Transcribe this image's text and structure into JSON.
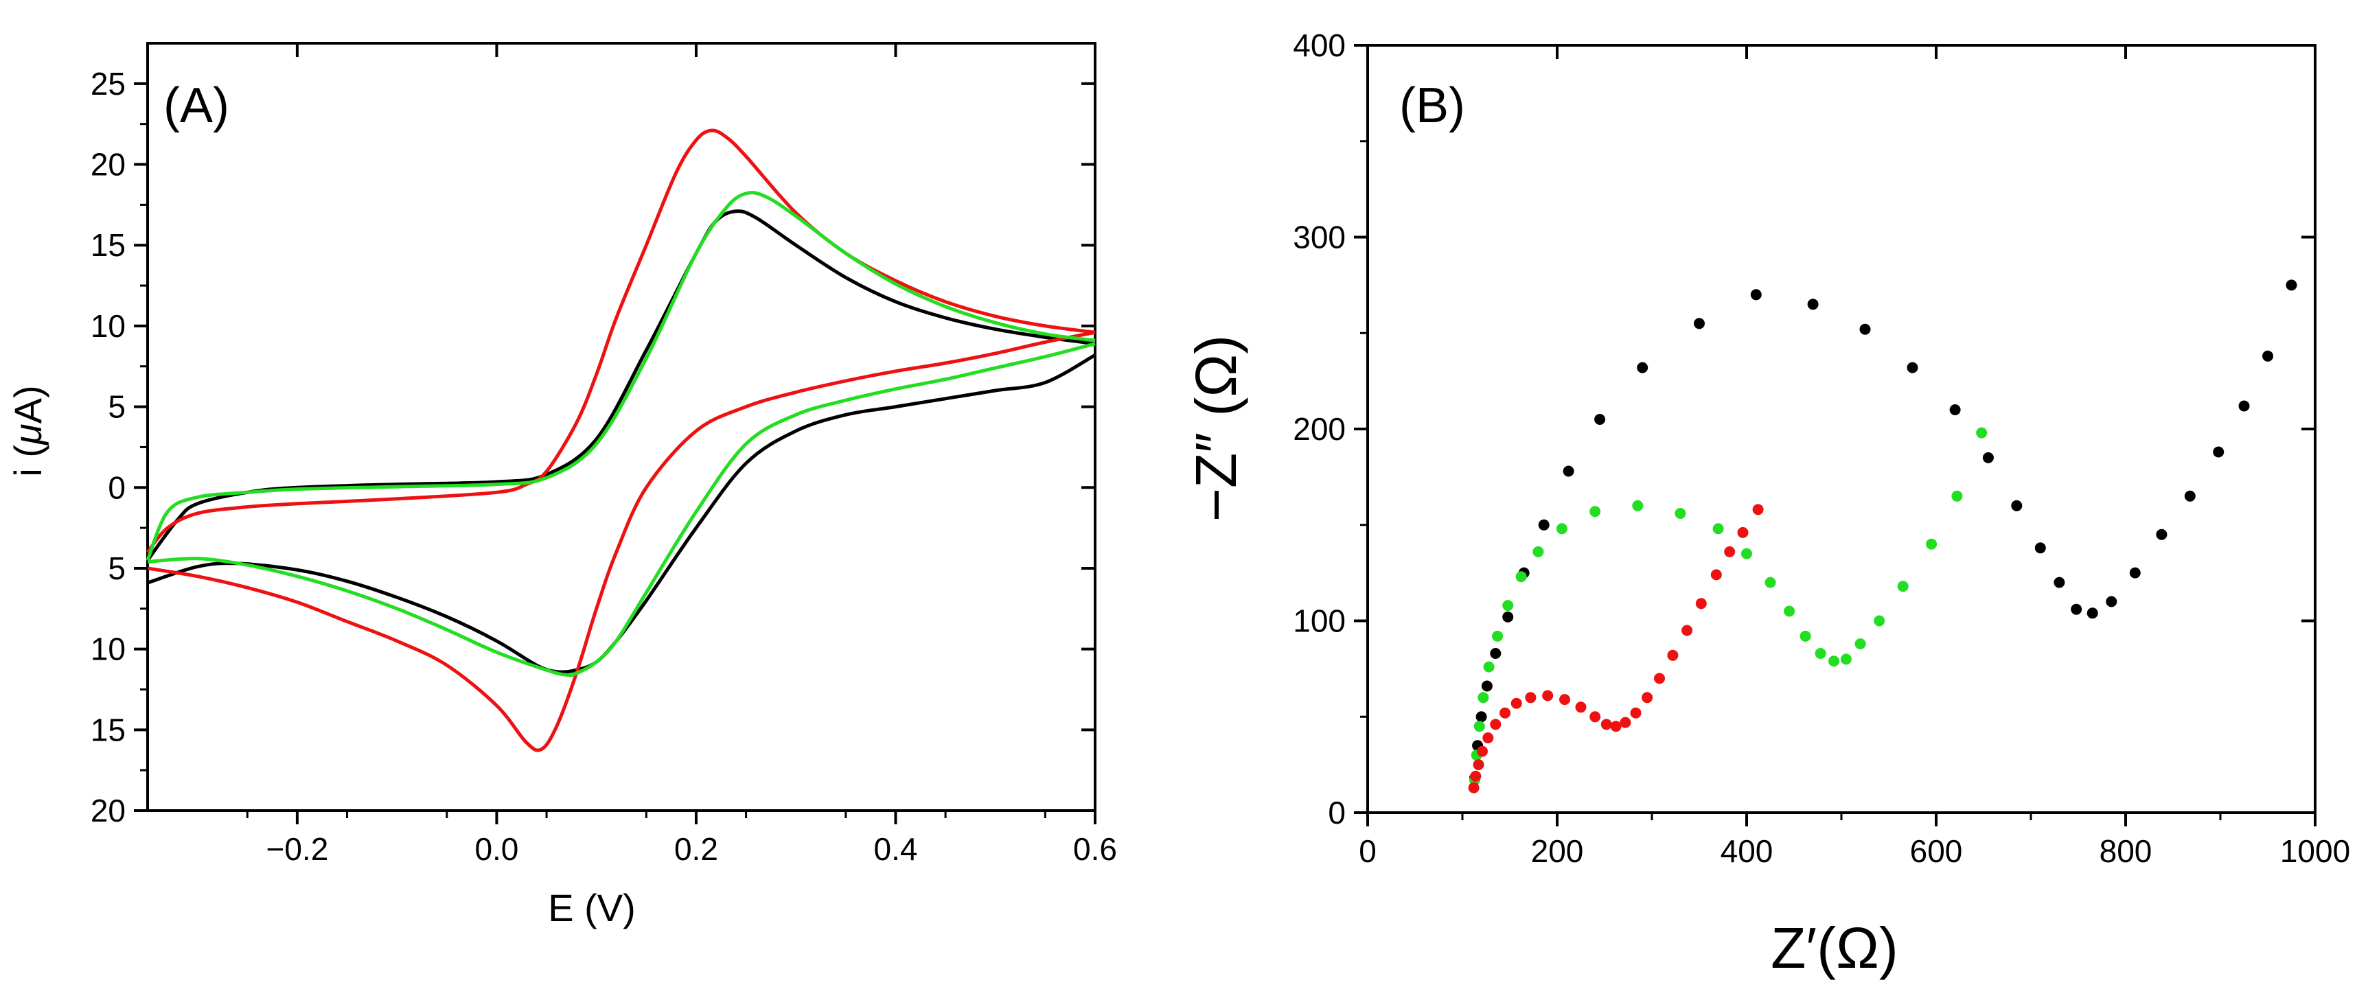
{
  "chart_data": [
    {
      "type": "line",
      "panel_label": "(A)",
      "xlabel": "E (V)",
      "ylabel": "i (μA)",
      "ylabel_prefix": "i (",
      "ylabel_unit_symbol": "μ",
      "ylabel_suffix": "A)",
      "xlim": [
        -0.35,
        0.6
      ],
      "ylim": [
        -20,
        27.5
      ],
      "x_ticks": [
        -0.2,
        0.0,
        0.2,
        0.4,
        0.6
      ],
      "x_tick_labels": [
        "−0.2",
        "0.0",
        "0.2",
        "0.4",
        "0.6"
      ],
      "y_ticks": [
        -20,
        -15,
        -10,
        -5,
        0,
        5,
        10,
        15,
        20,
        25
      ],
      "y_tick_labels": [
        "20",
        "15",
        "10",
        "5",
        "0",
        "5",
        "10",
        "15",
        "20",
        "25"
      ],
      "grid": false,
      "series": [
        {
          "name": "black",
          "color": "#000000",
          "forward": {
            "x": [
              -0.35,
              -0.32,
              -0.3,
              -0.25,
              -0.2,
              -0.1,
              0.0,
              0.05,
              0.1,
              0.15,
              0.2,
              0.22,
              0.24,
              0.26,
              0.3,
              0.35,
              0.4,
              0.45,
              0.5,
              0.55,
              0.6
            ],
            "y": [
              -4.5,
              -2.0,
              -1.0,
              -0.3,
              0.0,
              0.2,
              0.35,
              0.8,
              3.0,
              8.5,
              14.5,
              16.5,
              17.1,
              16.7,
              15.0,
              13.0,
              11.5,
              10.5,
              9.8,
              9.3,
              8.9
            ]
          },
          "reverse": {
            "x": [
              0.6,
              0.55,
              0.5,
              0.45,
              0.4,
              0.35,
              0.3,
              0.25,
              0.2,
              0.15,
              0.12,
              0.1,
              0.08,
              0.06,
              0.04,
              0.0,
              -0.05,
              -0.1,
              -0.15,
              -0.2,
              -0.26,
              -0.3,
              -0.35
            ],
            "y": [
              8.2,
              6.5,
              6.0,
              5.5,
              5.0,
              4.5,
              3.5,
              1.5,
              -2.5,
              -7.0,
              -9.5,
              -10.8,
              -11.3,
              -11.4,
              -11.0,
              -9.5,
              -8.0,
              -6.8,
              -5.8,
              -5.1,
              -4.7,
              -4.9,
              -5.9
            ]
          }
        },
        {
          "name": "red",
          "color": "#ee1111",
          "forward": {
            "x": [
              -0.35,
              -0.33,
              -0.3,
              -0.25,
              -0.2,
              -0.1,
              0.0,
              0.03,
              0.05,
              0.08,
              0.1,
              0.12,
              0.15,
              0.18,
              0.2,
              0.215,
              0.23,
              0.25,
              0.3,
              0.35,
              0.4,
              0.45,
              0.5,
              0.55,
              0.6
            ],
            "y": [
              -4.0,
              -2.5,
              -1.6,
              -1.2,
              -1.0,
              -0.7,
              -0.3,
              0.2,
              1.0,
              4.0,
              7.0,
              10.5,
              15.0,
              19.5,
              21.5,
              22.1,
              21.7,
              20.5,
              17.0,
              14.5,
              12.8,
              11.5,
              10.6,
              10.0,
              9.6
            ]
          },
          "reverse": {
            "x": [
              0.6,
              0.55,
              0.5,
              0.45,
              0.4,
              0.35,
              0.3,
              0.25,
              0.2,
              0.15,
              0.12,
              0.1,
              0.08,
              0.06,
              0.045,
              0.03,
              0.0,
              -0.05,
              -0.1,
              -0.15,
              -0.2,
              -0.25,
              -0.3,
              -0.35
            ],
            "y": [
              9.6,
              9.0,
              8.3,
              7.7,
              7.2,
              6.6,
              5.9,
              5.0,
              3.5,
              0.0,
              -4.0,
              -7.5,
              -11.5,
              -14.8,
              -16.2,
              -15.8,
              -13.5,
              -11.0,
              -9.5,
              -8.3,
              -7.1,
              -6.2,
              -5.5,
              -5.0
            ]
          }
        },
        {
          "name": "green",
          "color": "#22dd22",
          "forward": {
            "x": [
              -0.35,
              -0.33,
              -0.3,
              -0.25,
              -0.2,
              -0.1,
              0.0,
              0.05,
              0.1,
              0.15,
              0.2,
              0.23,
              0.25,
              0.27,
              0.3,
              0.35,
              0.4,
              0.45,
              0.5,
              0.55,
              0.6
            ],
            "y": [
              -4.5,
              -1.5,
              -0.6,
              -0.3,
              -0.1,
              0.05,
              0.2,
              0.6,
              2.7,
              8.0,
              14.5,
              17.3,
              18.2,
              18.0,
              16.8,
              14.5,
              12.6,
              11.2,
              10.2,
              9.5,
              9.1
            ]
          },
          "reverse": {
            "x": [
              0.6,
              0.55,
              0.5,
              0.45,
              0.4,
              0.35,
              0.3,
              0.25,
              0.2,
              0.15,
              0.12,
              0.1,
              0.08,
              0.07,
              0.05,
              0.0,
              -0.05,
              -0.1,
              -0.15,
              -0.2,
              -0.25,
              -0.3,
              -0.35
            ],
            "y": [
              8.9,
              8.1,
              7.4,
              6.7,
              6.1,
              5.4,
              4.5,
              2.7,
              -1.5,
              -6.5,
              -9.5,
              -10.8,
              -11.5,
              -11.6,
              -11.3,
              -10.2,
              -8.8,
              -7.5,
              -6.4,
              -5.5,
              -4.8,
              -4.4,
              -4.6
            ]
          }
        }
      ]
    },
    {
      "type": "scatter",
      "panel_label": "(B)",
      "xlabel": "Z′(Ω)",
      "ylabel": "−Z″ (Ω)",
      "xlim": [
        0,
        1000
      ],
      "ylim": [
        0,
        400
      ],
      "x_ticks": [
        0,
        200,
        400,
        600,
        800,
        1000
      ],
      "x_tick_labels": [
        "0",
        "200",
        "400",
        "600",
        "800",
        "1000"
      ],
      "y_ticks": [
        0,
        100,
        200,
        300,
        400
      ],
      "y_tick_labels": [
        "0",
        "100",
        "200",
        "300",
        "400"
      ],
      "grid": false,
      "series": [
        {
          "name": "black",
          "color": "#000000",
          "x": [
            113,
            116,
            120,
            126,
            135,
            148,
            165,
            186,
            212,
            245,
            290,
            350,
            410,
            470,
            525,
            575,
            620,
            655,
            685,
            710,
            730,
            748,
            765,
            785,
            810,
            838,
            868,
            898,
            925,
            950,
            975
          ],
          "y": [
            18,
            35,
            50,
            66,
            83,
            102,
            125,
            150,
            178,
            205,
            232,
            255,
            270,
            265,
            252,
            232,
            210,
            185,
            160,
            138,
            120,
            106,
            104,
            110,
            125,
            145,
            165,
            188,
            212,
            238,
            275
          ]
        },
        {
          "name": "green",
          "color": "#22dd22",
          "x": [
            113,
            115,
            118,
            122,
            128,
            137,
            148,
            162,
            180,
            205,
            240,
            285,
            330,
            370,
            400,
            425,
            445,
            462,
            478,
            492,
            505,
            520,
            540,
            565,
            595,
            622,
            648
          ],
          "y": [
            17,
            30,
            45,
            60,
            76,
            92,
            108,
            123,
            136,
            148,
            157,
            160,
            156,
            148,
            135,
            120,
            105,
            92,
            83,
            79,
            80,
            88,
            100,
            118,
            140,
            165,
            198
          ]
        },
        {
          "name": "red",
          "color": "#ee1111",
          "x": [
            112,
            114,
            117,
            121,
            127,
            135,
            145,
            157,
            172,
            190,
            208,
            225,
            240,
            252,
            262,
            272,
            283,
            295,
            308,
            322,
            337,
            352,
            368,
            382,
            396,
            412
          ],
          "y": [
            13,
            19,
            25,
            32,
            39,
            46,
            52,
            57,
            60,
            61,
            59,
            55,
            50,
            46,
            45,
            47,
            52,
            60,
            70,
            82,
            95,
            109,
            124,
            136,
            146,
            158
          ]
        }
      ]
    }
  ]
}
